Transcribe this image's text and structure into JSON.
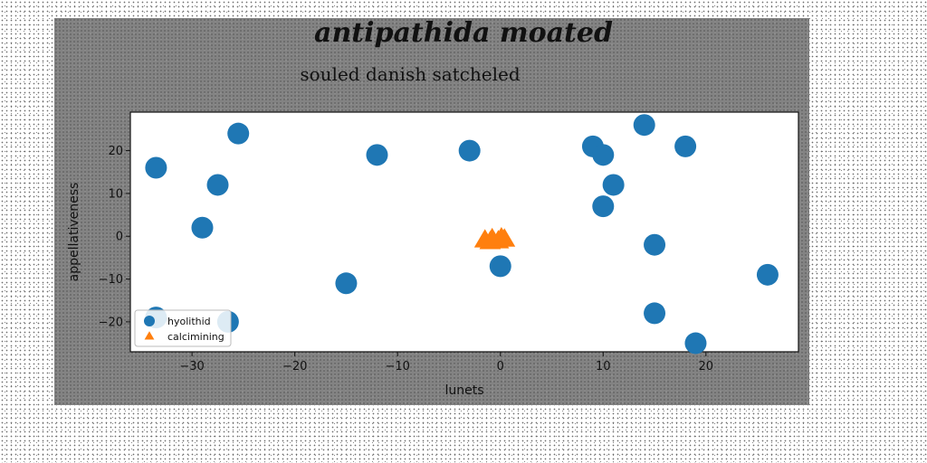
{
  "chart_data": {
    "type": "scatter",
    "suptitle": "antipathida moated",
    "title": "souled danish satcheled",
    "xlabel": "lunets",
    "ylabel": "appellativeness",
    "xlim": [
      -36,
      29
    ],
    "ylim": [
      -27,
      29
    ],
    "xticks": [
      -30,
      -20,
      -10,
      0,
      10,
      20
    ],
    "yticks": [
      -20,
      -10,
      0,
      10,
      20
    ],
    "grid": false,
    "legend_position": "lower-left",
    "series": [
      {
        "name": "hyolithid",
        "marker": "circle",
        "color": "#1f77b4",
        "points": [
          [
            -33.5,
            16
          ],
          [
            -25.5,
            24
          ],
          [
            -27.5,
            12
          ],
          [
            -29,
            2
          ],
          [
            -15,
            -11
          ],
          [
            -12,
            19
          ],
          [
            -3,
            20
          ],
          [
            0,
            -7
          ],
          [
            9,
            21
          ],
          [
            10,
            19
          ],
          [
            11,
            12
          ],
          [
            10,
            7
          ],
          [
            14,
            26
          ],
          [
            18,
            21
          ],
          [
            15,
            -2
          ],
          [
            15,
            -18
          ],
          [
            19,
            -25
          ],
          [
            26,
            -9
          ],
          [
            -33.5,
            -19
          ],
          [
            -26.5,
            -20
          ]
        ]
      },
      {
        "name": "calcimining",
        "marker": "triangle",
        "color": "#ff7f0e",
        "points": [
          [
            -1.5,
            -1
          ],
          [
            -0.8,
            -0.7
          ],
          [
            -0.2,
            -1.2
          ],
          [
            0.4,
            -0.8
          ],
          [
            -1,
            -1.4
          ],
          [
            0.1,
            -0.5
          ]
        ]
      }
    ]
  }
}
